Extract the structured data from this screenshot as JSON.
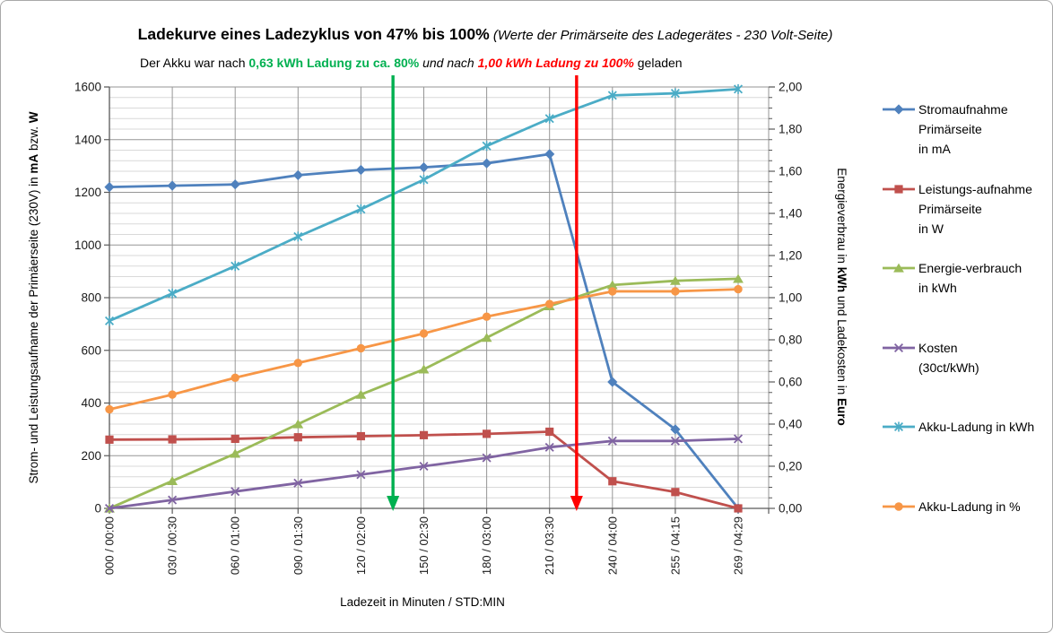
{
  "page_title": {
    "main": "Ladekurve eines Ladezyklus von 47% bis 100%",
    "paren": "  (Werte der Primärseite des Ladegerätes - 230 Volt-Seite)"
  },
  "subtitle": {
    "pre": "Der Akku war nach ",
    "highlight_green": "0,63 kWh Ladung zu ca. 80%",
    "mid": " und nach ",
    "highlight_red": "1,00 kWh Ladung zu 100%",
    "post": " geladen"
  },
  "axes": {
    "left": {
      "title_pre": "Strom-  und Leistungsaufname der Primäerseite (230V) in ",
      "title_unit1": "mA",
      "title_mid": " bzw. ",
      "title_unit2": "W"
    },
    "right": {
      "title_pre": "Energieverbrau in ",
      "title_unit1": "kWh",
      "title_mid": " und Ladekosten in ",
      "title_unit2": "Euro"
    },
    "x": {
      "title": "Ladezeit in  Minuten  /  STD:MIN"
    }
  },
  "chart_data": {
    "type": "line",
    "categories": [
      "000 / 00:00",
      "030 / 00:30",
      "060 / 01:00",
      "090 / 01:30",
      "120 / 02:00",
      "150 / 02:30",
      "180 / 03:00",
      "210 / 03:30",
      "240 / 04:00",
      "255 / 04:15",
      "269 / 04:29"
    ],
    "axis_left": {
      "min": 0,
      "max": 1600,
      "major_step": 200,
      "minor_step": 40,
      "tick_labels": [
        "0",
        "200",
        "400",
        "600",
        "800",
        "1000",
        "1200",
        "1400",
        "1600"
      ]
    },
    "axis_right": {
      "min": 0,
      "max": 2.0,
      "major_step": 0.2,
      "minor_step": 0.05,
      "tick_labels": [
        "0,00",
        "0,20",
        "0,40",
        "0,60",
        "0,80",
        "1,00",
        "1,20",
        "1,40",
        "1,60",
        "1,80",
        "2,00"
      ]
    },
    "grid": true,
    "legend_position": "right",
    "series": [
      {
        "key": "stromaufnahme",
        "legend_label": "Stromaufnahme\nPrimärseite\nin mA",
        "axis": "left",
        "color": "#4F81BD",
        "marker": "diamond",
        "values": [
          1220,
          1225,
          1230,
          1265,
          1285,
          1295,
          1310,
          1345,
          480,
          300,
          0
        ]
      },
      {
        "key": "leistungsaufnahme",
        "legend_label": "Leistungs-aufnahme\nPrimärseite\nin W",
        "axis": "left",
        "color": "#C0504D",
        "marker": "square",
        "values": [
          261,
          262,
          264,
          270,
          274,
          278,
          283,
          291,
          103,
          62,
          0
        ]
      },
      {
        "key": "energieverbrauch",
        "legend_label": "Energie-verbrauch\nin kWh",
        "axis": "right",
        "color": "#9BBB59",
        "marker": "triangle",
        "values": [
          0.0,
          0.13,
          0.26,
          0.4,
          0.54,
          0.66,
          0.81,
          0.96,
          1.06,
          1.08,
          1.09
        ]
      },
      {
        "key": "kosten",
        "legend_label": "Kosten\n(30ct/kWh)",
        "axis": "right",
        "color": "#8064A2",
        "marker": "x",
        "values": [
          0.0,
          0.04,
          0.08,
          0.12,
          0.16,
          0.2,
          0.24,
          0.29,
          0.32,
          0.32,
          0.33
        ]
      },
      {
        "key": "akku_ladung_kwh",
        "legend_label": "Akku-Ladung in kWh",
        "axis": "right",
        "color": "#4BACC6",
        "marker": "star",
        "values": [
          0.89,
          1.02,
          1.15,
          1.29,
          1.42,
          1.56,
          1.72,
          1.85,
          1.96,
          1.97,
          1.99
        ]
      },
      {
        "key": "akku_ladung_prozent",
        "legend_label": "Akku-Ladung in %",
        "axis": "right",
        "color": "#F79646",
        "marker": "circle",
        "value_scale": 0.01,
        "values": [
          47,
          54,
          62,
          69,
          76,
          83,
          91,
          97,
          103,
          103,
          104
        ]
      }
    ],
    "annotations": [
      {
        "key": "arrow-80-prozent",
        "color": "#00B050",
        "x_index": 4.51
      },
      {
        "key": "arrow-100-prozent",
        "color": "#FF0000",
        "x_index": 7.43
      }
    ]
  }
}
